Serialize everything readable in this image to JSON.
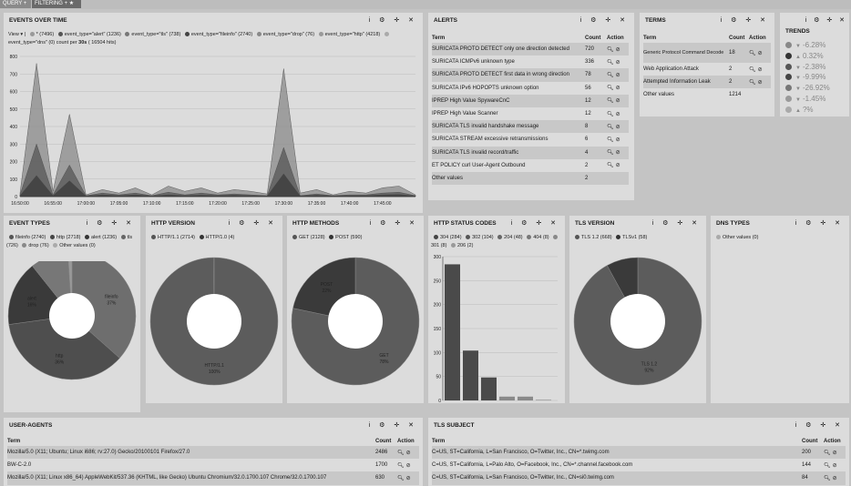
{
  "topbar": {
    "query_tab": "QUERY",
    "filtering_tab": "FILTERING"
  },
  "panel_icons": "i ⚙ ✛ ✕",
  "events_over_time": {
    "title": "EVENTS OVER TIME",
    "view": "View",
    "legend": [
      {
        "label": "* (7496)",
        "color": "#9a9a9a"
      },
      {
        "label": "event_type=\"alert\" (1236)",
        "color": "#555555"
      },
      {
        "label": "event_type=\"tls\" (738)",
        "color": "#777777"
      },
      {
        "label": "event_type=\"fileinfo\" (2740)",
        "color": "#444444"
      },
      {
        "label": "event_type=\"drop\" (76)",
        "color": "#888888"
      },
      {
        "label": "event_type=\"http\" (4218)",
        "color": "#999999"
      },
      {
        "label": "event_type=\"dns\" (0)",
        "color": "#aaaaaa"
      }
    ],
    "count_per_label": "count per",
    "count_per_interval": "30s",
    "count_per_hits": "( 16504 hits)"
  },
  "alerts": {
    "title": "ALERTS",
    "columns": [
      "Term",
      "Count",
      "Action"
    ],
    "rows": [
      {
        "term": "SURICATA PROTO DETECT only one direction detected",
        "count": "720"
      },
      {
        "term": "SURICATA ICMPv6 unknown type",
        "count": "336"
      },
      {
        "term": "SURICATA PROTO DETECT first data in wrong direction",
        "count": "78"
      },
      {
        "term": "SURICATA IPv6 HOPOPTS unknown option",
        "count": "56"
      },
      {
        "term": "IPREP High Value SpywareCnC",
        "count": "12"
      },
      {
        "term": "IPREP High Value Scanner",
        "count": "12"
      },
      {
        "term": "SURICATA TLS invalid handshake message",
        "count": "8"
      },
      {
        "term": "SURICATA STREAM excessive retransmissions",
        "count": "6"
      },
      {
        "term": "SURICATA TLS invalid record/traffic",
        "count": "4"
      },
      {
        "term": "ET POLICY curl User-Agent Outbound",
        "count": "2"
      },
      {
        "term": "Other values",
        "count": "2"
      }
    ]
  },
  "terms": {
    "title": "TERMS",
    "columns": [
      "Term",
      "Count",
      "Action"
    ],
    "rows": [
      {
        "term": "Generic Protocol Command Decode",
        "count": "18"
      },
      {
        "term": "Web Application Attack",
        "count": "2"
      },
      {
        "term": "Attempted Information Leak",
        "count": "2"
      },
      {
        "term": "Other values",
        "count": "1214"
      }
    ]
  },
  "trends": {
    "title": "TRENDS",
    "rows": [
      {
        "dir": "down",
        "value": "-6.28%",
        "color": "#888888"
      },
      {
        "dir": "up",
        "value": "0.32%",
        "color": "#333333"
      },
      {
        "dir": "down",
        "value": "-2.38%",
        "color": "#555555"
      },
      {
        "dir": "down",
        "value": "-9.99%",
        "color": "#444444"
      },
      {
        "dir": "down",
        "value": "-26.92%",
        "color": "#777777"
      },
      {
        "dir": "down",
        "value": "-1.45%",
        "color": "#9a9a9a"
      },
      {
        "dir": "up",
        "value": "?%",
        "color": "#aaaaaa"
      }
    ]
  },
  "event_types": {
    "title": "EVENT TYPES",
    "legend": [
      {
        "label": "fileinfo (2740)",
        "color": "#555"
      },
      {
        "label": "http (2718)",
        "color": "#444"
      },
      {
        "label": "alert (1236)",
        "color": "#333"
      },
      {
        "label": "tls (726)",
        "color": "#666"
      },
      {
        "label": "drop (76)",
        "color": "#888"
      },
      {
        "label": "Other values (0)",
        "color": "#aaa"
      }
    ],
    "labels": [
      {
        "name": "fileinfo",
        "pct": "37%"
      },
      {
        "name": "http",
        "pct": "36%"
      },
      {
        "name": "alert",
        "pct": "16%"
      }
    ]
  },
  "http_version": {
    "title": "HTTP VERSION",
    "legend": [
      {
        "label": "HTTP/1.1 (2714)",
        "color": "#555"
      },
      {
        "label": "HTTP/1.0 (4)",
        "color": "#333"
      }
    ],
    "labels": [
      {
        "name": "HTTP/1.1",
        "pct": "100%"
      }
    ]
  },
  "http_methods": {
    "title": "HTTP METHODS",
    "legend": [
      {
        "label": "GET (2128)",
        "color": "#555"
      },
      {
        "label": "POST (590)",
        "color": "#333"
      }
    ],
    "labels": [
      {
        "name": "POST",
        "pct": "22%"
      },
      {
        "name": "GET",
        "pct": "78%"
      }
    ]
  },
  "http_status": {
    "title": "HTTP STATUS CODES",
    "legend": [
      {
        "label": "304 (284)",
        "color": "#444"
      },
      {
        "label": "302 (104)",
        "color": "#555"
      },
      {
        "label": "204 (48)",
        "color": "#666"
      },
      {
        "label": "404 (8)",
        "color": "#777"
      },
      {
        "label": "301 (8)",
        "color": "#888"
      },
      {
        "label": "206 (2)",
        "color": "#999"
      }
    ]
  },
  "tls_version": {
    "title": "TLS VERSION",
    "legend": [
      {
        "label": "TLS 1.2 (668)",
        "color": "#555"
      },
      {
        "label": "TLSv1 (58)",
        "color": "#333"
      }
    ],
    "labels": [
      {
        "name": "TLS 1.2",
        "pct": "92%"
      }
    ]
  },
  "dns_types": {
    "title": "DNS TYPES",
    "legend": [
      {
        "label": "Other values (0)",
        "color": "#aaa"
      }
    ]
  },
  "user_agents": {
    "title": "USER-AGENTS",
    "columns": [
      "Term",
      "Count",
      "Action"
    ],
    "rows": [
      {
        "term": "Mozilla/5.0 (X11; Ubuntu; Linux i686; rv:27.0) Gecko/20100101 Firefox/27.0",
        "count": "2486"
      },
      {
        "term": "BW-C-2.0",
        "count": "1700"
      },
      {
        "term": "Mozilla/5.0 (X11; Linux x86_64) AppleWebKit/537.36 (KHTML, like Gecko) Ubuntu Chromium/32.0.1700.107 Chrome/32.0.1700.107",
        "count": "630"
      }
    ]
  },
  "tls_subject": {
    "title": "TLS SUBJECT",
    "columns": [
      "Term",
      "Count",
      "Action"
    ],
    "rows": [
      {
        "term": "C=US, ST=California, L=San Francisco, O=Twitter, Inc., CN=*.twimg.com",
        "count": "200"
      },
      {
        "term": "C=US, ST=California, L=Palo Alto, O=Facebook, Inc., CN=*.channel.facebook.com",
        "count": "144"
      },
      {
        "term": "C=US, ST=California, L=San Francisco, O=Twitter, Inc., CN=si0.twimg.com",
        "count": "84"
      }
    ]
  },
  "chart_data": [
    {
      "type": "area",
      "title": "EVENTS OVER TIME",
      "x": [
        "16:50:00",
        "16:52:30",
        "16:55:00",
        "16:57:30",
        "17:00:00",
        "17:02:30",
        "17:05:00",
        "17:07:30",
        "17:10:00",
        "17:12:30",
        "17:15:00",
        "17:17:30",
        "17:20:00",
        "17:22:30",
        "17:25:00",
        "17:27:30",
        "17:30:00",
        "17:32:30",
        "17:35:00",
        "17:37:30",
        "17:40:00",
        "17:42:30",
        "17:45:00",
        "17:47:30",
        "17:50:00"
      ],
      "xticks": [
        "16:50:00",
        "16:55:00",
        "17:00:00",
        "17:05:00",
        "17:10:00",
        "17:15:00",
        "17:20:00",
        "17:25:00",
        "17:30:00",
        "17:35:00",
        "17:40:00",
        "17:45:00"
      ],
      "ylim": [
        0,
        800
      ],
      "yticks": [
        0,
        100,
        200,
        300,
        400,
        500,
        600,
        700,
        800
      ],
      "series": [
        {
          "name": "* (7496)",
          "values": [
            20,
            760,
            30,
            470,
            10,
            40,
            20,
            50,
            10,
            60,
            30,
            50,
            20,
            40,
            30,
            15,
            730,
            20,
            40,
            10,
            30,
            20,
            50,
            60,
            10
          ]
        },
        {
          "name": "event_type=\"fileinfo\" (2740)",
          "values": [
            10,
            300,
            10,
            180,
            5,
            20,
            10,
            20,
            5,
            25,
            10,
            20,
            10,
            15,
            10,
            5,
            280,
            5,
            15,
            5,
            10,
            10,
            20,
            25,
            5
          ]
        },
        {
          "name": "event_type=\"alert\" (1236)",
          "values": [
            5,
            120,
            5,
            90,
            3,
            10,
            5,
            10,
            3,
            10,
            5,
            8,
            5,
            8,
            5,
            3,
            130,
            3,
            8,
            3,
            5,
            5,
            10,
            12,
            3
          ]
        }
      ]
    },
    {
      "type": "pie",
      "title": "EVENT TYPES",
      "categories": [
        "fileinfo",
        "http",
        "alert",
        "tls",
        "drop",
        "Other values"
      ],
      "values": [
        2740,
        2718,
        1236,
        726,
        76,
        0
      ]
    },
    {
      "type": "pie",
      "title": "HTTP VERSION",
      "categories": [
        "HTTP/1.1",
        "HTTP/1.0"
      ],
      "values": [
        2714,
        4
      ]
    },
    {
      "type": "pie",
      "title": "HTTP METHODS",
      "categories": [
        "GET",
        "POST"
      ],
      "values": [
        2128,
        590
      ]
    },
    {
      "type": "bar",
      "title": "HTTP STATUS CODES",
      "categories": [
        "304",
        "302",
        "204",
        "404",
        "301",
        "206"
      ],
      "values": [
        284,
        104,
        48,
        8,
        8,
        2
      ],
      "ylim": [
        0,
        300
      ],
      "yticks": [
        0,
        50,
        100,
        150,
        200,
        250,
        300
      ]
    },
    {
      "type": "pie",
      "title": "TLS VERSION",
      "categories": [
        "TLS 1.2",
        "TLSv1"
      ],
      "values": [
        668,
        58
      ]
    }
  ]
}
